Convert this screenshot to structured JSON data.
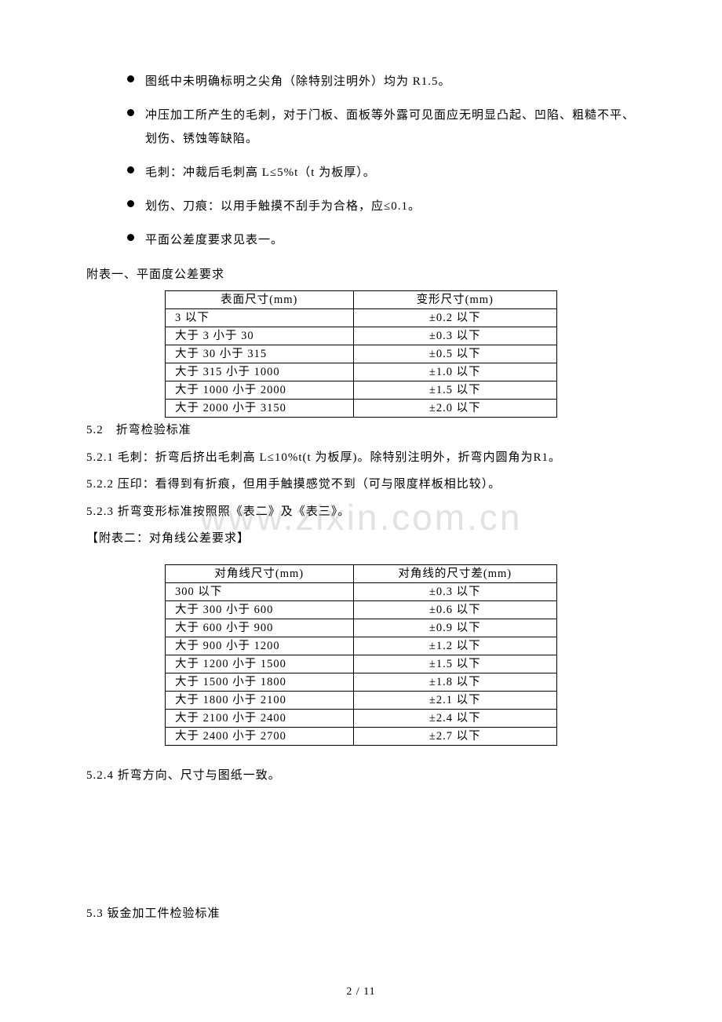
{
  "bullets": [
    "图纸中未明确标明之尖角（除特别注明外）均为 R1.5。",
    "冲压加工所产生的毛刺，对于门板、面板等外露可见面应无明显凸起、凹陷、粗糙不平、划伤、锈蚀等缺陷。",
    "毛刺：冲裁后毛刺高 L≤5%t（t 为板厚）。",
    "划伤、刀痕：以用手触摸不刮手为合格，应≤0.1。",
    "平面公差度要求见表一。"
  ],
  "line_table1_caption": "附表一、平面度公差要求",
  "table1": {
    "headers": [
      "表面尺寸(mm)",
      "变形尺寸(mm)"
    ],
    "rows": [
      [
        "3 以下",
        "±0.2 以下"
      ],
      [
        "大于 3 小于 30",
        "±0.3 以下"
      ],
      [
        "大于 30 小于 315",
        "±0.5 以下"
      ],
      [
        "大于 315 小于 1000",
        "±1.0 以下"
      ],
      [
        "大于 1000 小于 2000",
        "±1.5 以下"
      ],
      [
        "大于 2000 小于 3150",
        "±2.0 以下"
      ]
    ]
  },
  "sec52_title": "5.2　折弯检验标准",
  "sec521": "5.2.1 毛刺：折弯后挤出毛刺高 L≤10%t(t 为板厚)。除特别注明外，折弯内圆角为R1。",
  "sec522": "5.2.2 压印：看得到有折痕，但用手触摸感觉不到（可与限度样板相比较）。",
  "sec523": "5.2.3 折弯变形标准按照照《表二》及《表三》。",
  "table2_caption": "【附表二：对角线公差要求】",
  "table2": {
    "headers": [
      "对角线尺寸(mm)",
      "对角线的尺寸差(mm)"
    ],
    "rows": [
      [
        "300 以下",
        "±0.3 以下"
      ],
      [
        "大于 300 小于 600",
        "±0.6 以下"
      ],
      [
        "大于 600 小于 900",
        "±0.9 以下"
      ],
      [
        "大于 900 小于 1200",
        "±1.2 以下"
      ],
      [
        "大于 1200 小于 1500",
        "±1.5 以下"
      ],
      [
        "大于 1500 小于 1800",
        "±1.8 以下"
      ],
      [
        "大于 1800 小于 2100",
        "±2.1 以下"
      ],
      [
        "大于 2100 小于 2400",
        "±2.4 以下"
      ],
      [
        "大于 2400 小于 2700",
        "±2.7 以下"
      ]
    ]
  },
  "sec524": "5.2.4 折弯方向、尺寸与图纸一致。",
  "sec53": "5.3 钣金加工件检验标准",
  "watermark": "www.zixin.com.cn",
  "footer": "2 / 11"
}
